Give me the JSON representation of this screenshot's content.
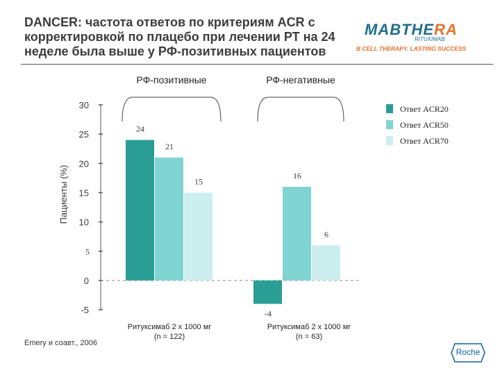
{
  "title": "DANCER: частота ответов по критериям ACR с корректировкой по плацебо при лечении РТ на 24 неделе была выше у РФ-позитивных пациентов",
  "logo": {
    "brand_main": "MABTHE",
    "brand_accent": "RA",
    "brand_sub": "RITUXIMAB",
    "tagline": "B CELL THERAPY. LASTING SUCCESS"
  },
  "footnote": "Emery и соавт., 2006",
  "roche_label": "Roche",
  "colors": {
    "acr20": "#2a9d94",
    "acr50": "#7fd3d1",
    "acr70": "#cdeeee",
    "brand": "#1e6d8c",
    "accent": "#e8702a"
  },
  "chart_data": {
    "type": "bar",
    "ylabel": "Пациенты (%)",
    "ylim": [
      -5,
      30
    ],
    "yticks": [
      "30",
      "25",
      "20",
      "15",
      "10",
      "5",
      "0",
      "-5"
    ],
    "group_labels": [
      "РФ-позитивные",
      "РФ-негативные"
    ],
    "categories": [
      "Ритуксимаб 2 х 1000 мг (n = 122)",
      "Ритуксимаб 2 х 1000 мг (n = 63)"
    ],
    "category_lines": [
      [
        "Ритуксимаб 2 х 1000 мг",
        "(n = 122)"
      ],
      [
        "Ритуксимаб 2 х 1000 мг",
        "(n = 63)"
      ]
    ],
    "series": [
      {
        "name": "Ответ ACR20",
        "values": [
          24,
          -4
        ],
        "labels": [
          "24",
          "-4"
        ]
      },
      {
        "name": "Ответ ACR50",
        "values": [
          21,
          16
        ],
        "labels": [
          "21",
          "16"
        ]
      },
      {
        "name": "Ответ ACR70",
        "values": [
          15,
          6
        ],
        "labels": [
          "15",
          "6"
        ]
      }
    ],
    "legend_position": "top-right",
    "grid": false
  }
}
